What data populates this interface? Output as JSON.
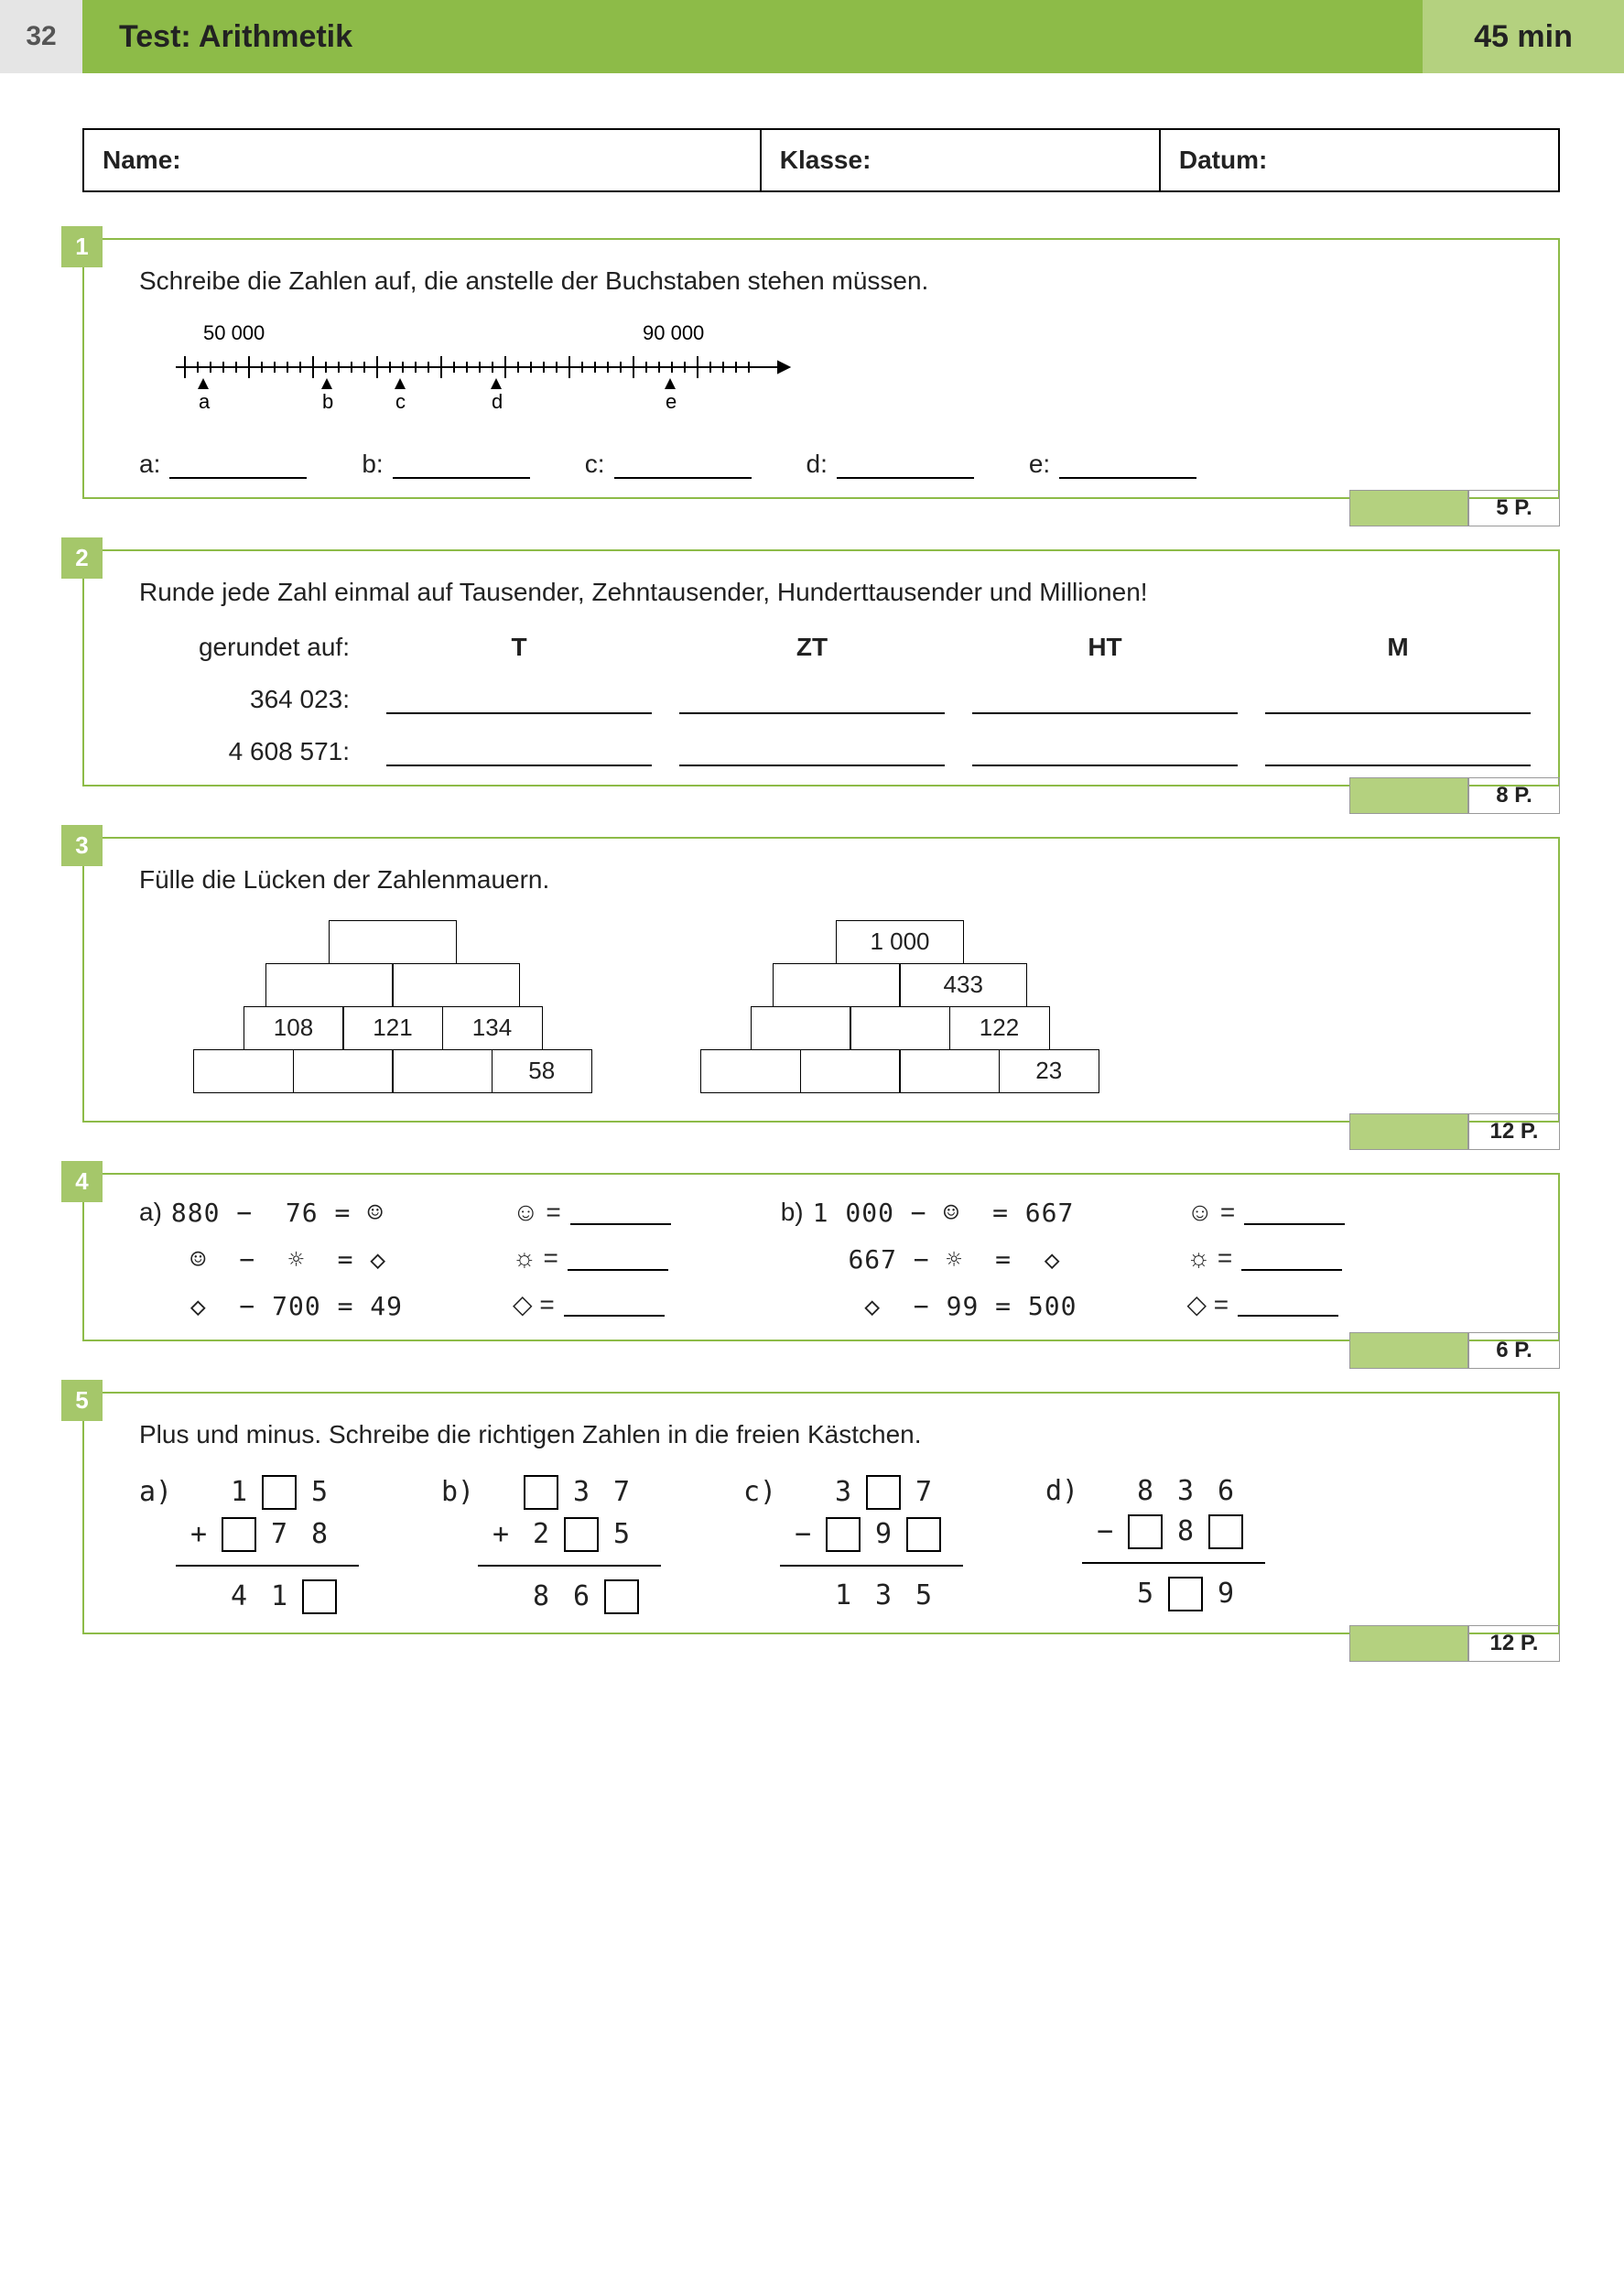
{
  "header": {
    "page_number": "32",
    "title": "Test: Arithmetik",
    "time": "45 min"
  },
  "colors": {
    "header_green": "#8dbb48",
    "light_green": "#b4d17f",
    "badge_green": "#a5c76a",
    "page_num_bg": "#e5e5e5"
  },
  "info": {
    "name_label": "Name:",
    "class_label": "Klasse:",
    "date_label": "Datum:"
  },
  "task1": {
    "num": "1",
    "text": "Schreibe die Zahlen auf, die anstelle der Buchstaben stehen müssen.",
    "nl_labels": {
      "left": "50 000",
      "right": "90 000"
    },
    "letters": [
      "a",
      "b",
      "c",
      "d",
      "e"
    ],
    "answers": [
      "a:",
      "b:",
      "c:",
      "d:",
      "e:"
    ],
    "points": "5 P."
  },
  "task2": {
    "num": "2",
    "text": "Runde jede Zahl einmal auf Tausender, Zehntausender, Hunderttausender und Millionen!",
    "row_label": "gerundet auf:",
    "cols": [
      "T",
      "ZT",
      "HT",
      "M"
    ],
    "numbers": [
      "364 023:",
      "4 608 571:"
    ],
    "points": "8 P."
  },
  "task3": {
    "num": "3",
    "text": "Fülle die Lücken der Zahlenmauern.",
    "wall1": {
      "r1": [
        ""
      ],
      "r2": [
        "",
        ""
      ],
      "r3": [
        "108",
        "121",
        "134"
      ],
      "r4": [
        "",
        "",
        "",
        "58"
      ]
    },
    "wall2": {
      "r1": [
        "1 000"
      ],
      "r2": [
        "",
        "433"
      ],
      "r3": [
        "",
        "",
        "122"
      ],
      "r4": [
        "",
        "",
        "",
        "23"
      ]
    },
    "points": "12 P."
  },
  "task4": {
    "num": "4",
    "colA": {
      "label": "a)",
      "lines": [
        "880 −  76 = ☺",
        " ☺  −  ☼  = ◇",
        " ◇  − 700 = 49"
      ],
      "answers": [
        "☺ =",
        "☼ =",
        "◇ ="
      ]
    },
    "colB": {
      "label": "b)",
      "lines": [
        "1 000 − ☺  = 667",
        "  667 − ☼  =  ◇ ",
        "   ◇  − 99 = 500"
      ],
      "answers": [
        "☺ =",
        "☼ =",
        "◇ ="
      ]
    },
    "points": "6 P."
  },
  "task5": {
    "num": "5",
    "text": "Plus und minus. Schreibe die richtigen Zahlen in die freien Kästchen.",
    "a": {
      "label": "a)",
      "op": "+",
      "r1": [
        " ",
        "1",
        "□",
        "5"
      ],
      "r2": [
        "+",
        "□",
        "7",
        "8"
      ],
      "res": [
        " ",
        "4",
        "1",
        "□"
      ]
    },
    "b": {
      "label": "b)",
      "op": "+",
      "r1": [
        " ",
        "□",
        "3",
        "7"
      ],
      "r2": [
        "+",
        "2",
        "□",
        "5"
      ],
      "res": [
        " ",
        "8",
        "6",
        "□"
      ]
    },
    "c": {
      "label": "c)",
      "op": "−",
      "r1": [
        " ",
        "3",
        "□",
        "7"
      ],
      "r2": [
        "−",
        "□",
        "9",
        "□"
      ],
      "res": [
        " ",
        "1",
        "3",
        "5"
      ]
    },
    "d": {
      "label": "d)",
      "op": "−",
      "r1": [
        " ",
        "8",
        "3",
        "6"
      ],
      "r2": [
        "−",
        "□",
        "8",
        "□"
      ],
      "res": [
        " ",
        "5",
        "□",
        "9"
      ]
    },
    "points": "12 P."
  }
}
